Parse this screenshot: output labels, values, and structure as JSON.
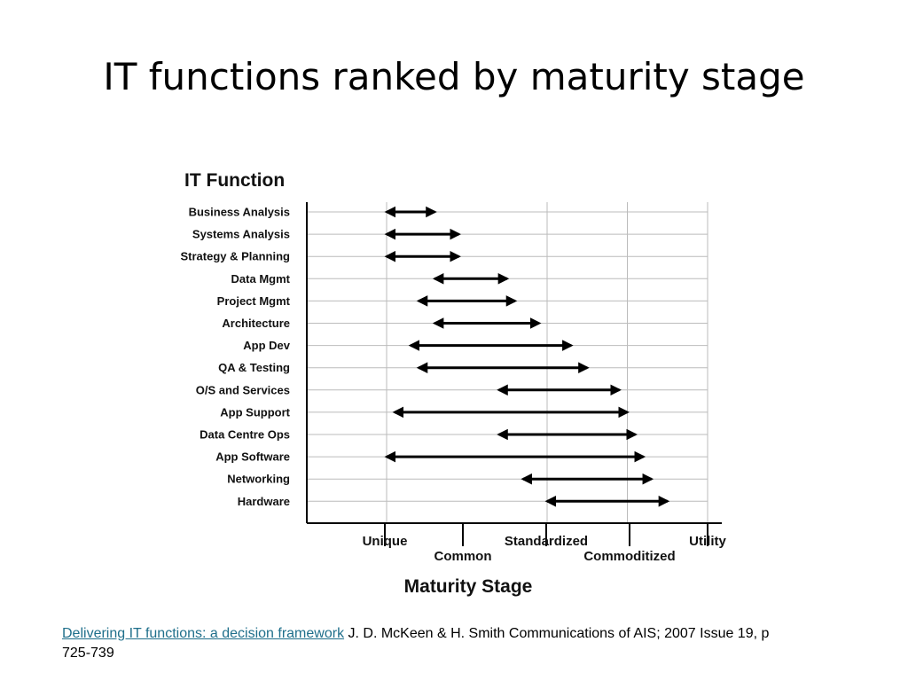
{
  "slide": {
    "title": "IT functions ranked by maturity stage"
  },
  "chart_data": {
    "type": "range",
    "title": "IT Function",
    "xlabel": "Maturity Stage",
    "ylabel": "",
    "x_ticks": [
      "Unique",
      "Common",
      "Standardized",
      "Commoditized",
      "Utility"
    ],
    "x_scale": "ordinal stages 0-4 (Unique=0, Common=1, Standardized=2, Commoditized=3, Utility=4)",
    "xlim": [
      -1,
      4
    ],
    "grid": true,
    "categories": [
      "Business Analysis",
      "Systems Analysis",
      "Strategy & Planning",
      "Data Mgmt",
      "Project Mgmt",
      "Architecture",
      "App Dev",
      "QA & Testing",
      "O/S and Services",
      "App Support",
      "Data Centre Ops",
      "App Software",
      "Networking",
      "Hardware"
    ],
    "ranges": [
      {
        "start": 0.0,
        "end": 0.6
      },
      {
        "start": 0.0,
        "end": 0.9
      },
      {
        "start": 0.0,
        "end": 0.9
      },
      {
        "start": 0.6,
        "end": 1.5
      },
      {
        "start": 0.4,
        "end": 1.6
      },
      {
        "start": 0.6,
        "end": 1.9
      },
      {
        "start": 0.3,
        "end": 2.3
      },
      {
        "start": 0.4,
        "end": 2.5
      },
      {
        "start": 1.4,
        "end": 2.9
      },
      {
        "start": 0.1,
        "end": 3.0
      },
      {
        "start": 1.4,
        "end": 3.1
      },
      {
        "start": 0.0,
        "end": 3.2
      },
      {
        "start": 1.7,
        "end": 3.3
      },
      {
        "start": 2.0,
        "end": 3.5
      }
    ]
  },
  "citation": {
    "link_text": "Delivering IT functions: a decision framework",
    "rest": " J. D. McKeen & H. Smith Communications of AIS; 2007 Issue 19, p 725-739"
  },
  "colors": {
    "arrow": "#000000",
    "grid": "#bbbbbb",
    "axis": "#000000",
    "link": "#1f6f8b"
  }
}
